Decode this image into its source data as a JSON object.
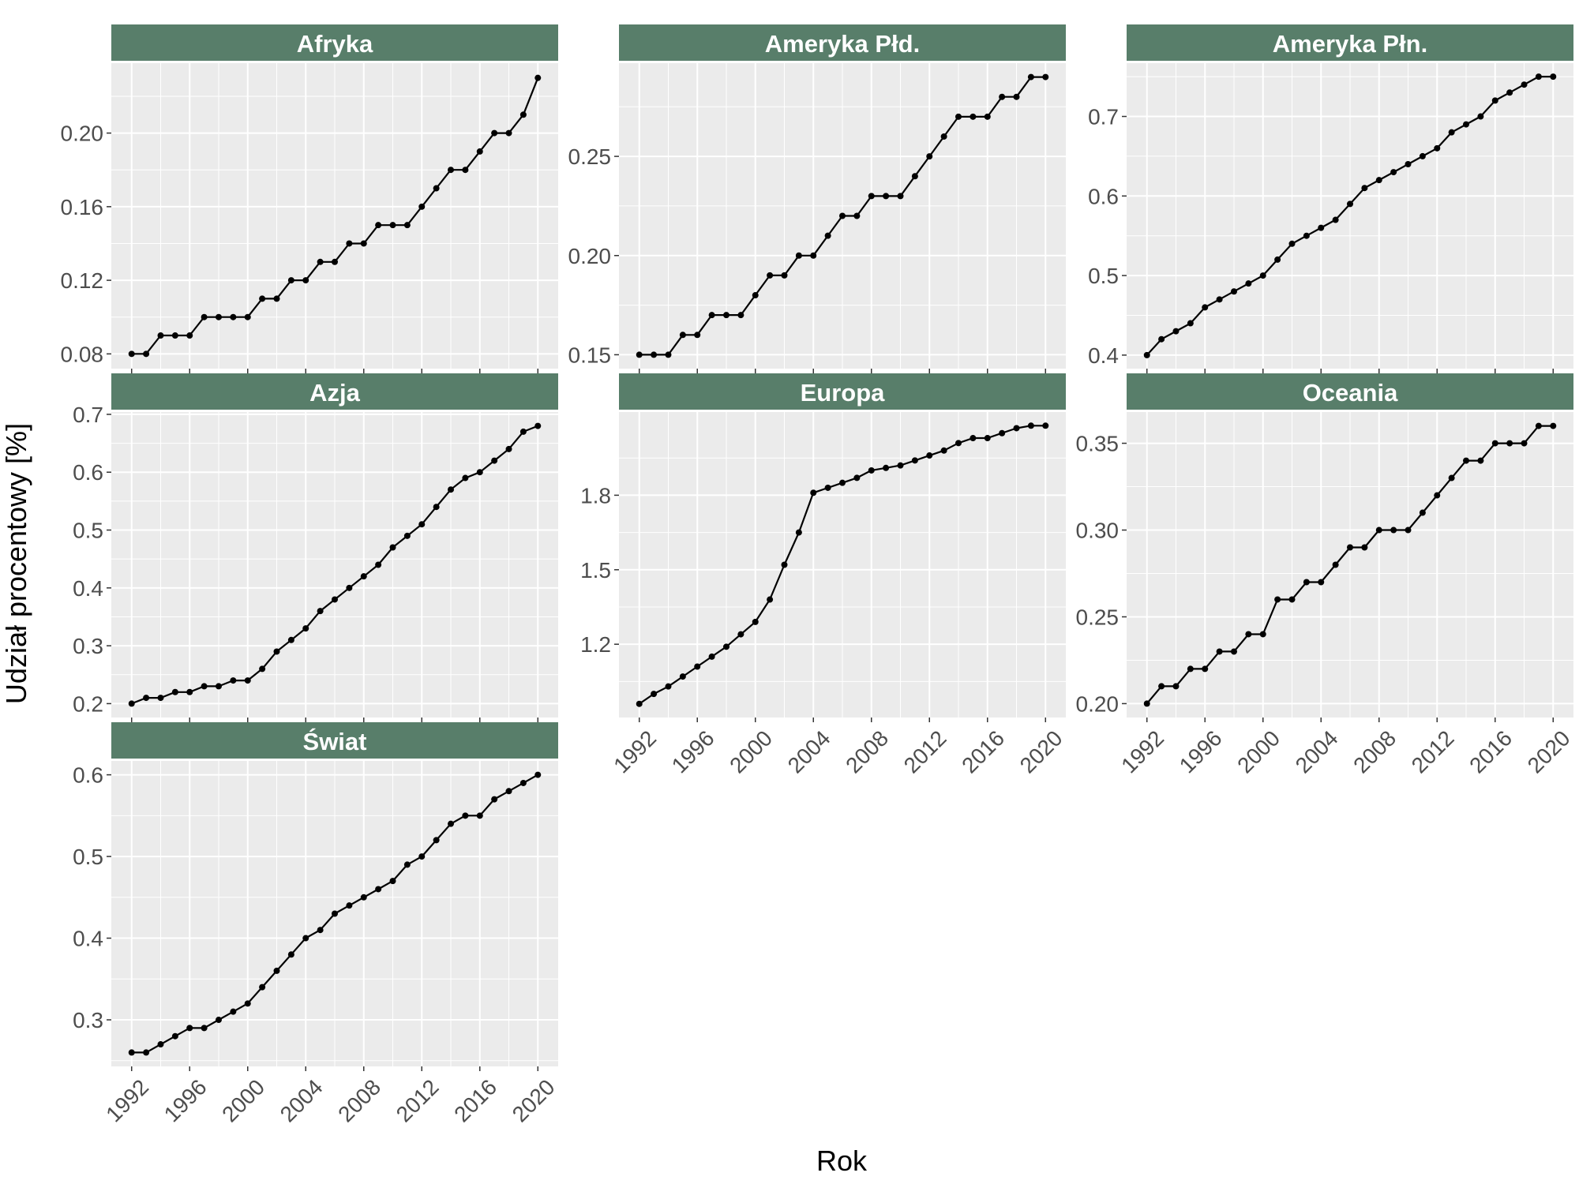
{
  "figure": {
    "xlabel": "Rok",
    "ylabel": "Udział procentowy [%]"
  },
  "chart_data": [
    {
      "type": "line",
      "title": "Afryka",
      "x": [
        1992,
        1993,
        1994,
        1995,
        1996,
        1997,
        1998,
        1999,
        2000,
        2001,
        2002,
        2003,
        2004,
        2005,
        2006,
        2007,
        2008,
        2009,
        2010,
        2011,
        2012,
        2013,
        2014,
        2015,
        2016,
        2017,
        2018,
        2019,
        2020
      ],
      "y": [
        0.08,
        0.08,
        0.09,
        0.09,
        0.09,
        0.1,
        0.1,
        0.1,
        0.1,
        0.11,
        0.11,
        0.12,
        0.12,
        0.13,
        0.13,
        0.14,
        0.14,
        0.15,
        0.15,
        0.15,
        0.16,
        0.17,
        0.18,
        0.18,
        0.19,
        0.2,
        0.2,
        0.21,
        0.23
      ],
      "xlim": [
        1990.6,
        2021.4
      ],
      "ylim": [
        0.072,
        0.238
      ],
      "yticks": [
        0.08,
        0.12,
        0.16,
        0.2
      ],
      "ytick_labels": [
        "0.08",
        "0.12",
        "0.16",
        "0.20"
      ],
      "xticks": [
        1992,
        1996,
        2000,
        2004,
        2008,
        2012,
        2016,
        2020
      ],
      "xtick_labels": [],
      "xlabel": "",
      "ylabel": ""
    },
    {
      "type": "line",
      "title": "Ameryka Płd.",
      "x": [
        1992,
        1993,
        1994,
        1995,
        1996,
        1997,
        1998,
        1999,
        2000,
        2001,
        2002,
        2003,
        2004,
        2005,
        2006,
        2007,
        2008,
        2009,
        2010,
        2011,
        2012,
        2013,
        2014,
        2015,
        2016,
        2017,
        2018,
        2019,
        2020
      ],
      "y": [
        0.15,
        0.15,
        0.15,
        0.16,
        0.16,
        0.17,
        0.17,
        0.17,
        0.18,
        0.19,
        0.19,
        0.2,
        0.2,
        0.21,
        0.22,
        0.22,
        0.23,
        0.23,
        0.23,
        0.24,
        0.25,
        0.26,
        0.27,
        0.27,
        0.27,
        0.28,
        0.28,
        0.29,
        0.29
      ],
      "xlim": [
        1990.6,
        2021.4
      ],
      "ylim": [
        0.143,
        0.297
      ],
      "yticks": [
        0.15,
        0.2,
        0.25
      ],
      "ytick_labels": [
        "0.15",
        "0.20",
        "0.25"
      ],
      "xticks": [
        1992,
        1996,
        2000,
        2004,
        2008,
        2012,
        2016,
        2020
      ],
      "xtick_labels": [],
      "xlabel": "",
      "ylabel": ""
    },
    {
      "type": "line",
      "title": "Ameryka Płn.",
      "x": [
        1992,
        1993,
        1994,
        1995,
        1996,
        1997,
        1998,
        1999,
        2000,
        2001,
        2002,
        2003,
        2004,
        2005,
        2006,
        2007,
        2008,
        2009,
        2010,
        2011,
        2012,
        2013,
        2014,
        2015,
        2016,
        2017,
        2018,
        2019,
        2020
      ],
      "y": [
        0.4,
        0.42,
        0.43,
        0.44,
        0.46,
        0.47,
        0.48,
        0.49,
        0.5,
        0.52,
        0.54,
        0.55,
        0.56,
        0.57,
        0.59,
        0.61,
        0.62,
        0.63,
        0.64,
        0.65,
        0.66,
        0.68,
        0.69,
        0.7,
        0.72,
        0.73,
        0.74,
        0.75,
        0.75
      ],
      "xlim": [
        1990.6,
        2021.4
      ],
      "ylim": [
        0.383,
        0.767
      ],
      "yticks": [
        0.4,
        0.5,
        0.6,
        0.7
      ],
      "ytick_labels": [
        "0.4",
        "0.5",
        "0.6",
        "0.7"
      ],
      "xticks": [
        1992,
        1996,
        2000,
        2004,
        2008,
        2012,
        2016,
        2020
      ],
      "xtick_labels": [],
      "xlabel": "",
      "ylabel": ""
    },
    {
      "type": "line",
      "title": "Azja",
      "x": [
        1992,
        1993,
        1994,
        1995,
        1996,
        1997,
        1998,
        1999,
        2000,
        2001,
        2002,
        2003,
        2004,
        2005,
        2006,
        2007,
        2008,
        2009,
        2010,
        2011,
        2012,
        2013,
        2014,
        2015,
        2016,
        2017,
        2018,
        2019,
        2020
      ],
      "y": [
        0.2,
        0.21,
        0.21,
        0.22,
        0.22,
        0.23,
        0.23,
        0.24,
        0.24,
        0.26,
        0.29,
        0.31,
        0.33,
        0.36,
        0.38,
        0.4,
        0.42,
        0.44,
        0.47,
        0.49,
        0.51,
        0.54,
        0.57,
        0.59,
        0.6,
        0.62,
        0.64,
        0.67,
        0.68
      ],
      "xlim": [
        1990.6,
        2021.4
      ],
      "ylim": [
        0.176,
        0.704
      ],
      "yticks": [
        0.2,
        0.3,
        0.4,
        0.5,
        0.6,
        0.7
      ],
      "ytick_labels": [
        "0.2",
        "0.3",
        "0.4",
        "0.5",
        "0.6",
        "0.7"
      ],
      "xticks": [
        1992,
        1996,
        2000,
        2004,
        2008,
        2012,
        2016,
        2020
      ],
      "xtick_labels": [],
      "xlabel": "",
      "ylabel": ""
    },
    {
      "type": "line",
      "title": "Europa",
      "x": [
        1992,
        1993,
        1994,
        1995,
        1996,
        1997,
        1998,
        1999,
        2000,
        2001,
        2002,
        2003,
        2004,
        2005,
        2006,
        2007,
        2008,
        2009,
        2010,
        2011,
        2012,
        2013,
        2014,
        2015,
        2016,
        2017,
        2018,
        2019,
        2020
      ],
      "y": [
        0.96,
        1.0,
        1.03,
        1.07,
        1.11,
        1.15,
        1.19,
        1.24,
        1.29,
        1.38,
        1.52,
        1.65,
        1.81,
        1.83,
        1.85,
        1.87,
        1.9,
        1.91,
        1.92,
        1.94,
        1.96,
        1.98,
        2.01,
        2.03,
        2.03,
        2.05,
        2.07,
        2.08,
        2.08
      ],
      "xlim": [
        1990.6,
        2021.4
      ],
      "ylim": [
        0.905,
        2.135
      ],
      "yticks": [
        1.2,
        1.5,
        1.8
      ],
      "ytick_labels": [
        "1.2",
        "1.5",
        "1.8"
      ],
      "xticks": [
        1992,
        1996,
        2000,
        2004,
        2008,
        2012,
        2016,
        2020
      ],
      "xtick_labels": [
        "1992",
        "1996",
        "2000",
        "2004",
        "2008",
        "2012",
        "2016",
        "2020"
      ],
      "xlabel": "",
      "ylabel": ""
    },
    {
      "type": "line",
      "title": "Oceania",
      "x": [
        1992,
        1993,
        1994,
        1995,
        1996,
        1997,
        1998,
        1999,
        2000,
        2001,
        2002,
        2003,
        2004,
        2005,
        2006,
        2007,
        2008,
        2009,
        2010,
        2011,
        2012,
        2013,
        2014,
        2015,
        2016,
        2017,
        2018,
        2019,
        2020
      ],
      "y": [
        0.2,
        0.21,
        0.21,
        0.22,
        0.22,
        0.23,
        0.23,
        0.24,
        0.24,
        0.26,
        0.26,
        0.27,
        0.27,
        0.28,
        0.29,
        0.29,
        0.3,
        0.3,
        0.3,
        0.31,
        0.32,
        0.33,
        0.34,
        0.34,
        0.35,
        0.35,
        0.35,
        0.36,
        0.36
      ],
      "xlim": [
        1990.6,
        2021.4
      ],
      "ylim": [
        0.192,
        0.368
      ],
      "yticks": [
        0.2,
        0.25,
        0.3,
        0.35
      ],
      "ytick_labels": [
        "0.20",
        "0.25",
        "0.30",
        "0.35"
      ],
      "xticks": [
        1992,
        1996,
        2000,
        2004,
        2008,
        2012,
        2016,
        2020
      ],
      "xtick_labels": [
        "1992",
        "1996",
        "2000",
        "2004",
        "2008",
        "2012",
        "2016",
        "2020"
      ],
      "xlabel": "",
      "ylabel": ""
    },
    {
      "type": "line",
      "title": "Świat",
      "x": [
        1992,
        1993,
        1994,
        1995,
        1996,
        1997,
        1998,
        1999,
        2000,
        2001,
        2002,
        2003,
        2004,
        2005,
        2006,
        2007,
        2008,
        2009,
        2010,
        2011,
        2012,
        2013,
        2014,
        2015,
        2016,
        2017,
        2018,
        2019,
        2020
      ],
      "y": [
        0.26,
        0.26,
        0.27,
        0.28,
        0.29,
        0.29,
        0.3,
        0.31,
        0.32,
        0.34,
        0.36,
        0.38,
        0.4,
        0.41,
        0.43,
        0.44,
        0.45,
        0.46,
        0.47,
        0.49,
        0.5,
        0.52,
        0.54,
        0.55,
        0.55,
        0.57,
        0.58,
        0.59,
        0.6
      ],
      "xlim": [
        1990.6,
        2021.4
      ],
      "ylim": [
        0.243,
        0.617
      ],
      "yticks": [
        0.3,
        0.4,
        0.5,
        0.6
      ],
      "ytick_labels": [
        "0.3",
        "0.4",
        "0.5",
        "0.6"
      ],
      "xticks": [
        1992,
        1996,
        2000,
        2004,
        2008,
        2012,
        2016,
        2020
      ],
      "xtick_labels": [
        "1992",
        "1996",
        "2000",
        "2004",
        "2008",
        "2012",
        "2016",
        "2020"
      ],
      "xlabel": "",
      "ylabel": ""
    }
  ],
  "style": {
    "panel_background": "#ebebeb",
    "grid_color": "#ffffff",
    "strip_background": "#587e6a",
    "strip_text_color": "#ffffff",
    "line_color": "#000000",
    "tick_label_color": "#4d4d4d"
  }
}
